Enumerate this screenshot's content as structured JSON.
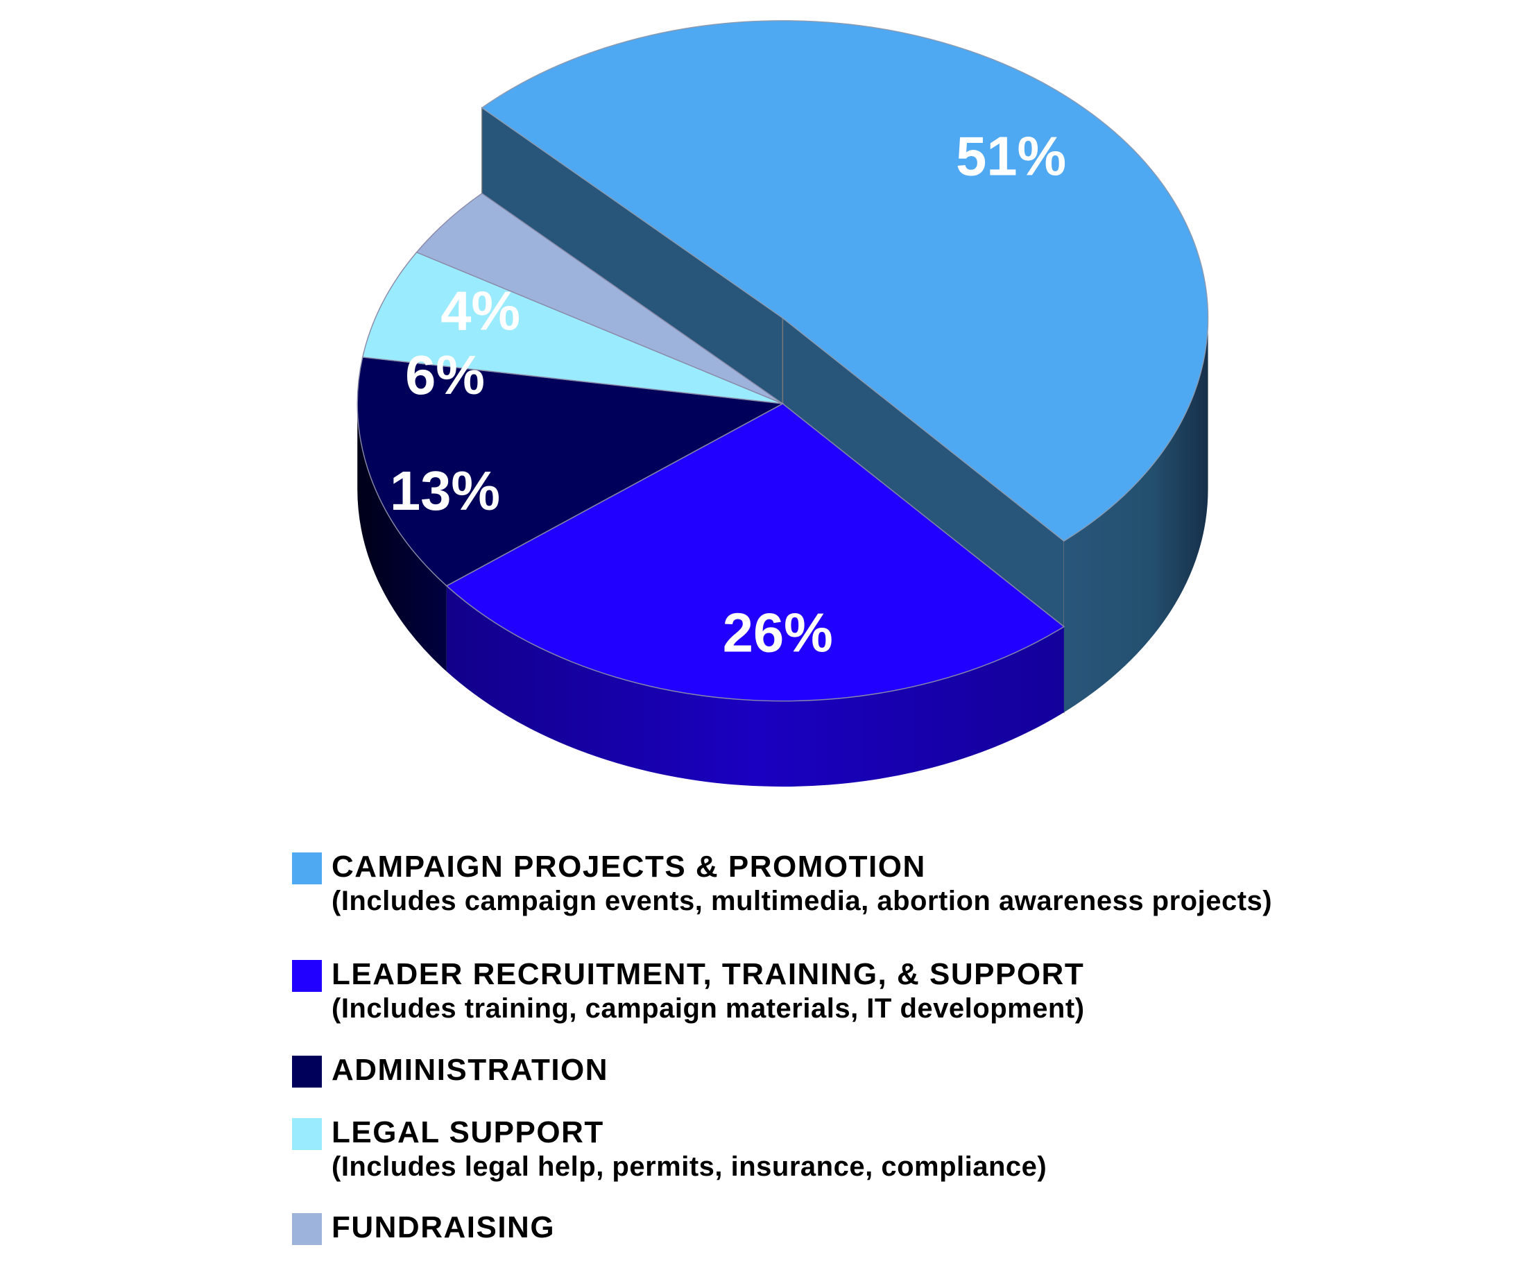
{
  "chart_data": {
    "type": "pie",
    "style": "3d-exploded",
    "slices": [
      {
        "label": "CAMPAIGN PROJECTS & PROMOTION",
        "description": "(Includes campaign events, multimedia, abortion awareness projects)",
        "value": 51,
        "value_label": "51%",
        "color": "#4EA8F2",
        "side_color": "#28567A"
      },
      {
        "label": "LEADER RECRUITMENT, TRAINING, & SUPPORT",
        "description": "(Includes training, campaign materials, IT development)",
        "value": 26,
        "value_label": "26%",
        "color": "#2200FF",
        "side_color": "#16009C"
      },
      {
        "label": "ADMINISTRATION",
        "description": "",
        "value": 13,
        "value_label": "13%",
        "color": "#00005A",
        "side_color": "#000030"
      },
      {
        "label": "LEGAL SUPPORT",
        "description": "(Includes legal help, permits, insurance, compliance)",
        "value": 6,
        "value_label": "6%",
        "color": "#9BEBFE",
        "side_color": "#6FB8CC"
      },
      {
        "label": "FUNDRAISING",
        "description": "",
        "value": 4,
        "value_label": "4%",
        "color": "#9DB3DC",
        "side_color": "#7288B0"
      }
    ],
    "legend_position": "bottom"
  }
}
